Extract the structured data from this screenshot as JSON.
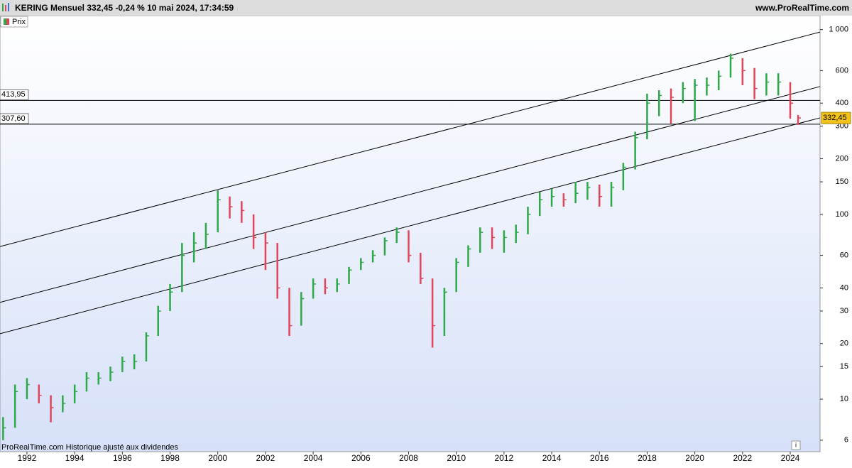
{
  "chart_data": {
    "type": "ohlc",
    "title": "KERING Mensuel 332,45 -0,24 % 10 mai 2024, 17:34:59",
    "source": "www.ProRealTime.com",
    "legend": "Prix",
    "note": "ProRealTime.com  Historique ajusté aux dividendes",
    "x": [
      1991.0,
      1991.5,
      1992.0,
      1992.5,
      1993.0,
      1993.5,
      1994.0,
      1994.5,
      1995.0,
      1995.5,
      1996.0,
      1996.5,
      1997.0,
      1997.5,
      1998.0,
      1998.5,
      1999.0,
      1999.5,
      2000.0,
      2000.5,
      2001.0,
      2001.5,
      2002.0,
      2002.5,
      2003.0,
      2003.5,
      2004.0,
      2004.5,
      2005.0,
      2005.5,
      2006.0,
      2006.5,
      2007.0,
      2007.5,
      2008.0,
      2008.5,
      2009.0,
      2009.5,
      2010.0,
      2010.5,
      2011.0,
      2011.5,
      2012.0,
      2012.5,
      2013.0,
      2013.5,
      2014.0,
      2014.5,
      2015.0,
      2015.5,
      2016.0,
      2016.5,
      2017.0,
      2017.5,
      2018.0,
      2018.5,
      2019.0,
      2019.5,
      2020.0,
      2020.5,
      2021.0,
      2021.5,
      2022.0,
      2022.5,
      2023.0,
      2023.5,
      2024.0,
      2024.33
    ],
    "high": [
      8,
      12,
      13,
      12,
      10.5,
      10.5,
      12,
      14,
      14,
      15,
      17,
      17.5,
      23,
      32,
      42,
      70,
      80,
      90,
      135,
      125,
      118,
      100,
      80,
      70,
      40,
      38,
      45,
      45,
      45,
      52,
      58,
      64,
      75,
      85,
      82,
      62,
      45,
      40,
      58,
      68,
      85,
      85,
      82,
      88,
      110,
      132,
      138,
      130,
      150,
      150,
      145,
      150,
      190,
      280,
      450,
      470,
      480,
      520,
      540,
      550,
      600,
      740,
      700,
      620,
      580,
      580,
      520,
      345
    ],
    "low": [
      6,
      7,
      10,
      9.5,
      7.5,
      8.5,
      9.5,
      11,
      12,
      12.5,
      14,
      14.5,
      16,
      22,
      30,
      38,
      55,
      65,
      80,
      95,
      90,
      65,
      50,
      35,
      22,
      25,
      35,
      37,
      38,
      42,
      50,
      55,
      60,
      70,
      55,
      42,
      19,
      22,
      38,
      52,
      62,
      65,
      62,
      70,
      78,
      98,
      110,
      110,
      115,
      120,
      110,
      110,
      135,
      175,
      255,
      340,
      310,
      400,
      320,
      440,
      470,
      550,
      500,
      420,
      440,
      440,
      330,
      305
    ],
    "close": [
      7,
      11,
      12,
      10.5,
      9,
      9.5,
      11,
      13,
      13,
      14,
      16,
      16,
      22,
      30,
      38,
      60,
      70,
      78,
      120,
      110,
      105,
      75,
      70,
      40,
      25,
      35,
      42,
      40,
      42,
      50,
      55,
      60,
      72,
      80,
      60,
      45,
      25,
      38,
      55,
      65,
      80,
      75,
      75,
      80,
      100,
      120,
      125,
      120,
      130,
      140,
      125,
      140,
      180,
      260,
      400,
      440,
      430,
      480,
      500,
      500,
      560,
      700,
      600,
      480,
      520,
      520,
      400,
      332.45
    ],
    "up_color": "#2fa84a",
    "down_color": "#e0455a",
    "log_scale": true,
    "ylim": [
      5.2,
      1190
    ],
    "yticks": [
      6,
      10,
      15,
      20,
      30,
      40,
      60,
      100,
      150,
      200,
      300,
      400,
      600,
      {
        "value": 1000,
        "label": "1 000"
      }
    ],
    "xlim": [
      1990.87,
      2025.25
    ],
    "xticks": [
      1992,
      1994,
      1996,
      1998,
      2000,
      2002,
      2004,
      2006,
      2008,
      2010,
      2012,
      2014,
      2016,
      2018,
      2020,
      2022,
      2024
    ],
    "levels": [
      {
        "value": 413.95,
        "label": "413,95"
      },
      {
        "value": 307.6,
        "label": "307,60"
      }
    ],
    "last_price": {
      "value": 332.45,
      "label": "332,45"
    },
    "trendlines": [
      {
        "x": [
          1990.87,
          2025.25
        ],
        "y": [
          67,
          970
        ]
      },
      {
        "x": [
          1990.87,
          2025.25
        ],
        "y": [
          33.4,
          492
        ]
      },
      {
        "x": [
          1990.87,
          2025.25
        ],
        "y": [
          22.6,
          333
        ]
      }
    ]
  }
}
